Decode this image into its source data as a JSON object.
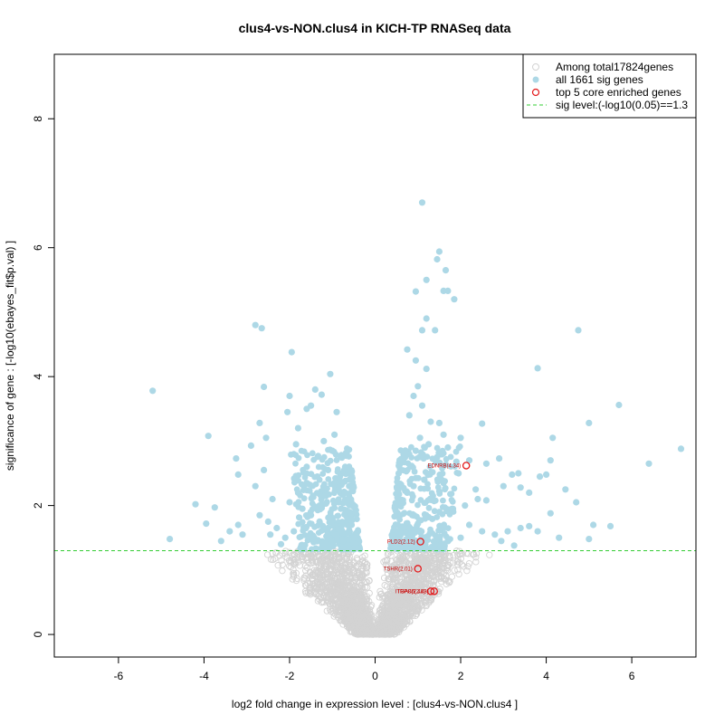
{
  "chart_data": {
    "type": "scatter",
    "title": "clus4-vs-NON.clus4 in KICH-TP RNASeq data",
    "xlabel": "log2 fold change in expression level : [clus4-vs-NON.clus4 ]",
    "ylabel": "significance of gene : [-log10(ebayes_fit$p.val) ]",
    "xlim": [
      -7.5,
      7.5
    ],
    "ylim": [
      -0.35,
      9.0
    ],
    "x_ticks": [
      -6,
      -4,
      -2,
      0,
      2,
      4,
      6
    ],
    "y_ticks": [
      0,
      2,
      4,
      6,
      8
    ],
    "grid": false,
    "legend": {
      "placement": "top-right",
      "entries": [
        {
          "label": "Among total17824genes",
          "symbol": "open-circle",
          "color": "#d3d3d3"
        },
        {
          "label": "all 1661 sig genes",
          "symbol": "filled-circle",
          "color": "#add8e6"
        },
        {
          "label": "top 5 core enriched genes",
          "symbol": "open-circle",
          "color": "#e41a1c"
        },
        {
          "label": "sig level:(-log10(0.05)==1.3",
          "symbol": "dashed-line",
          "color": "#33cc33"
        }
      ]
    },
    "sig_level": 1.3,
    "colors": {
      "nonsig": "#d3d3d3",
      "sig": "#add8e6",
      "top": "#e41a1c",
      "threshold": "#33cc33"
    },
    "sig_points": [
      [
        -5.2,
        3.78
      ],
      [
        -4.8,
        1.48
      ],
      [
        -4.2,
        2.02
      ],
      [
        -3.9,
        3.08
      ],
      [
        -3.75,
        1.97
      ],
      [
        -3.95,
        1.72
      ],
      [
        -3.25,
        2.73
      ],
      [
        -3.2,
        2.48
      ],
      [
        -3.4,
        1.6
      ],
      [
        -3.2,
        1.7
      ],
      [
        -3.1,
        1.55
      ],
      [
        -2.8,
        4.8
      ],
      [
        -2.65,
        4.75
      ],
      [
        -2.6,
        3.84
      ],
      [
        -2.7,
        3.28
      ],
      [
        -2.9,
        2.93
      ],
      [
        -2.55,
        3.05
      ],
      [
        -2.6,
        2.55
      ],
      [
        -2.8,
        2.3
      ],
      [
        -2.4,
        2.1
      ],
      [
        -2.7,
        1.85
      ],
      [
        -2.5,
        1.75
      ],
      [
        -2.3,
        1.65
      ],
      [
        -1.95,
        4.38
      ],
      [
        -2.0,
        3.7
      ],
      [
        -2.05,
        3.45
      ],
      [
        -1.8,
        3.2
      ],
      [
        -1.85,
        2.95
      ],
      [
        -1.6,
        3.5
      ],
      [
        -1.5,
        3.55
      ],
      [
        -1.4,
        3.8
      ],
      [
        -1.25,
        3.72
      ],
      [
        -1.05,
        4.04
      ],
      [
        -0.9,
        3.45
      ],
      [
        -0.95,
        3.1
      ],
      [
        -1.2,
        3.0
      ],
      [
        -1.0,
        2.85
      ],
      [
        -0.8,
        2.75
      ],
      [
        -1.1,
        2.55
      ],
      [
        -1.35,
        2.45
      ],
      [
        -1.6,
        2.35
      ],
      [
        -1.8,
        2.2
      ],
      [
        -2.0,
        2.05
      ],
      [
        -1.7,
        1.95
      ],
      [
        -1.5,
        1.85
      ],
      [
        -1.3,
        1.75
      ],
      [
        -1.1,
        1.65
      ],
      [
        -0.9,
        1.55
      ],
      [
        -0.75,
        1.45
      ],
      [
        -0.65,
        1.38
      ],
      [
        -1.9,
        1.6
      ],
      [
        -2.1,
        1.5
      ],
      [
        -1.45,
        1.5
      ],
      [
        -0.7,
        2.2
      ],
      [
        -0.85,
        2.05
      ],
      [
        -0.6,
        1.9
      ],
      [
        -0.55,
        1.7
      ],
      [
        -0.95,
        2.35
      ],
      [
        -1.15,
        2.15
      ],
      [
        -0.7,
        2.6
      ],
      [
        -0.6,
        2.4
      ],
      [
        -1.3,
        2.0
      ],
      [
        -0.5,
        1.5
      ],
      [
        -0.45,
        1.4
      ],
      [
        -2.2,
        1.4
      ],
      [
        -2.45,
        1.55
      ],
      [
        -3.6,
        1.45
      ],
      [
        -1.6,
        2.6
      ],
      [
        -1.0,
        1.4
      ],
      [
        -0.8,
        1.95
      ],
      [
        1.1,
        6.7
      ],
      [
        1.5,
        5.94
      ],
      [
        1.45,
        5.82
      ],
      [
        1.65,
        5.65
      ],
      [
        1.2,
        5.5
      ],
      [
        1.7,
        5.33
      ],
      [
        1.6,
        5.33
      ],
      [
        0.95,
        5.32
      ],
      [
        1.85,
        5.2
      ],
      [
        1.2,
        4.9
      ],
      [
        1.1,
        4.72
      ],
      [
        1.4,
        4.72
      ],
      [
        0.75,
        4.42
      ],
      [
        0.95,
        4.25
      ],
      [
        1.2,
        4.12
      ],
      [
        1.0,
        3.85
      ],
      [
        0.9,
        3.7
      ],
      [
        1.1,
        3.55
      ],
      [
        0.8,
        3.4
      ],
      [
        1.3,
        3.3
      ],
      [
        1.5,
        3.28
      ],
      [
        1.6,
        3.1
      ],
      [
        2.5,
        3.27
      ],
      [
        2.0,
        3.05
      ],
      [
        1.05,
        3.05
      ],
      [
        1.25,
        2.95
      ],
      [
        0.95,
        2.85
      ],
      [
        1.45,
        2.75
      ],
      [
        1.7,
        2.9
      ],
      [
        1.9,
        2.68
      ],
      [
        2.2,
        2.7
      ],
      [
        2.6,
        2.65
      ],
      [
        2.9,
        2.73
      ],
      [
        3.2,
        2.48
      ],
      [
        3.35,
        2.5
      ],
      [
        3.0,
        2.3
      ],
      [
        3.4,
        2.28
      ],
      [
        3.85,
        2.45
      ],
      [
        3.6,
        2.2
      ],
      [
        2.4,
        2.1
      ],
      [
        2.6,
        2.08
      ],
      [
        2.1,
        2.0
      ],
      [
        1.8,
        1.95
      ],
      [
        1.5,
        1.9
      ],
      [
        1.25,
        1.82
      ],
      [
        1.0,
        1.72
      ],
      [
        0.8,
        1.65
      ],
      [
        0.6,
        1.55
      ],
      [
        0.5,
        1.45
      ],
      [
        0.45,
        1.38
      ],
      [
        0.75,
        2.2
      ],
      [
        0.65,
        2.05
      ],
      [
        0.9,
        2.3
      ],
      [
        1.15,
        2.4
      ],
      [
        1.35,
        2.15
      ],
      [
        1.6,
        2.35
      ],
      [
        2.2,
        1.7
      ],
      [
        2.5,
        1.6
      ],
      [
        2.8,
        1.55
      ],
      [
        3.1,
        1.6
      ],
      [
        3.4,
        1.65
      ],
      [
        3.6,
        1.68
      ],
      [
        3.8,
        1.6
      ],
      [
        4.1,
        1.88
      ],
      [
        4.15,
        3.05
      ],
      [
        4.1,
        2.7
      ],
      [
        4.0,
        2.48
      ],
      [
        4.45,
        2.25
      ],
      [
        4.7,
        2.05
      ],
      [
        4.3,
        1.5
      ],
      [
        5.0,
        1.48
      ],
      [
        5.1,
        1.7
      ],
      [
        5.5,
        1.68
      ],
      [
        4.75,
        4.72
      ],
      [
        3.8,
        4.13
      ],
      [
        5.0,
        3.28
      ],
      [
        5.7,
        3.56
      ],
      [
        6.4,
        2.65
      ],
      [
        7.15,
        2.88
      ],
      [
        2.0,
        1.5
      ],
      [
        1.7,
        1.45
      ],
      [
        1.4,
        1.4
      ],
      [
        2.95,
        1.45
      ],
      [
        3.25,
        1.38
      ],
      [
        0.55,
        2.5
      ],
      [
        0.7,
        2.75
      ],
      [
        2.35,
        2.25
      ],
      [
        1.95,
        2.5
      ]
    ],
    "top_genes": [
      {
        "label": "EDNRB(4.34)",
        "x": 2.13,
        "y": 2.62
      },
      {
        "label": "PLD2(2.12)",
        "x": 1.06,
        "y": 1.44
      },
      {
        "label": "TSHR(2.01)",
        "x": 1.0,
        "y": 1.02
      },
      {
        "label": "ITGA8(2.48)",
        "x": 1.3,
        "y": 0.67
      },
      {
        "label": "TRPC6(2.43)",
        "x": 1.38,
        "y": 0.67
      }
    ]
  }
}
